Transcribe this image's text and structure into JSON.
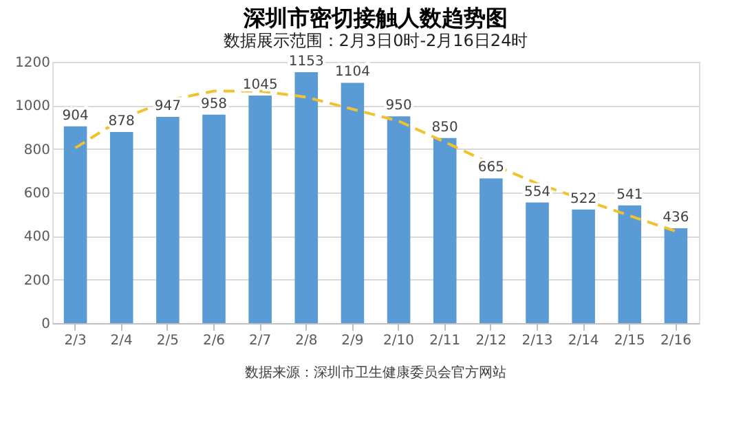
{
  "chart_data": {
    "type": "bar",
    "title": "深圳市密切接触人数趋势图",
    "subtitle": "数据展示范围：2月3日0时-2月16日24时",
    "categories": [
      "2/3",
      "2/4",
      "2/5",
      "2/6",
      "2/7",
      "2/8",
      "2/9",
      "2/10",
      "2/11",
      "2/12",
      "2/13",
      "2/14",
      "2/15",
      "2/16"
    ],
    "series": [
      {
        "color": "#5b9bd5",
        "values": [
          904,
          878,
          947,
          958,
          1045,
          1153,
          1104,
          950,
          850,
          665,
          554,
          522,
          541,
          436
        ],
        "value_labels": [
          "904",
          "878",
          "947",
          "958",
          "1045",
          "1153",
          "1104",
          "950",
          "850",
          "665",
          "554",
          "522",
          "541",
          "436"
        ]
      },
      {
        "type": "line",
        "color": "#f2c12e",
        "line_style": "dashed",
        "values": [
          805,
          938,
          1023,
          1066,
          1066,
          1038,
          983,
          928,
          832,
          732,
          641,
          567,
          493,
          422
        ]
      }
    ],
    "ylim": [
      0,
      1200
    ],
    "yticks": [
      0,
      200,
      400,
      600,
      800,
      1000,
      1200
    ],
    "grid": "y",
    "annotations": [
      "数据来源：深圳市卫生健康委员会官方网站"
    ]
  }
}
